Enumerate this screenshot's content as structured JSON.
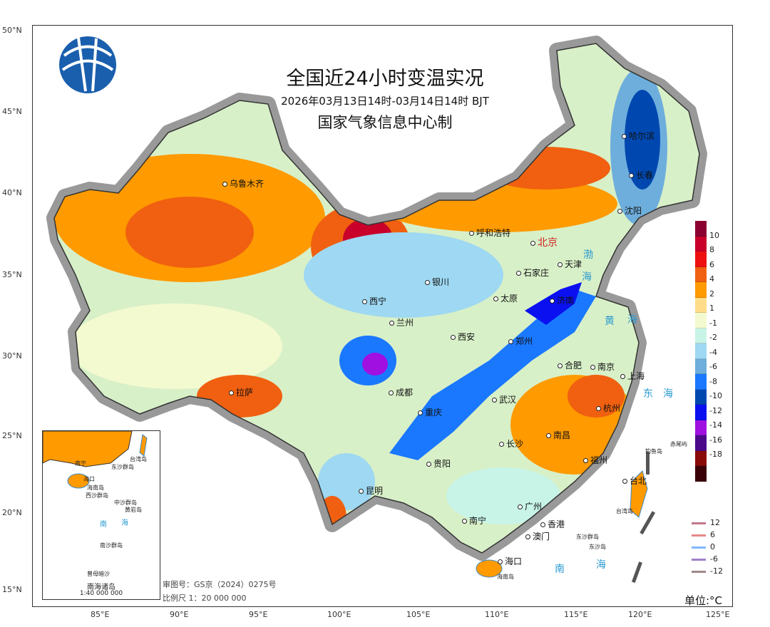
{
  "title": "全国近24小时变温实况",
  "subtitle": "2026年03月13日14时-03月14日14时 BJT",
  "producer": "国家气象信息中心制",
  "logo": "cma-globe-logo",
  "lat_ticks": [
    "50°N",
    "45°N",
    "40°N",
    "35°N",
    "30°N",
    "25°N",
    "20°N",
    "15°N"
  ],
  "lon_ticks": [
    "85°E",
    "90°E",
    "95°E",
    "100°E",
    "105°E",
    "110°E",
    "115°E",
    "120°E",
    "125°E"
  ],
  "cities": [
    "乌鲁木齐",
    "西宁",
    "兰州",
    "银川",
    "呼和浩特",
    "北京",
    "天津",
    "石家庄",
    "太原",
    "济南",
    "郑州",
    "西安",
    "成都",
    "重庆",
    "拉萨",
    "武汉",
    "合肥",
    "南京",
    "上海",
    "杭州",
    "长沙",
    "南昌",
    "贵阳",
    "昆明",
    "南宁",
    "广州",
    "福州",
    "台北",
    "哈尔滨",
    "长春",
    "沈阳",
    "香港",
    "澳门",
    "海口"
  ],
  "islands": [
    "海南岛",
    "台湾岛",
    "钓鱼岛",
    "赤尾屿",
    "东沙群岛",
    "东沙岛"
  ],
  "seas": [
    "渤",
    "海",
    "黄",
    "海",
    "东",
    "海",
    "南",
    "海"
  ],
  "colorbar": {
    "labels": [
      "10",
      "8",
      "6",
      "4",
      "2",
      "1",
      "-1",
      "-2",
      "-4",
      "-6",
      "-8",
      "-10",
      "-12",
      "-14",
      "-16",
      "-18"
    ],
    "colors": [
      "#8b0030",
      "#c8002a",
      "#ee1010",
      "#f06010",
      "#ff9a00",
      "#ffdd88",
      "#f4fad0",
      "#c8f4e8",
      "#9ed8f2",
      "#6eaedc",
      "#1a78ff",
      "#0048b0",
      "#0a10f0",
      "#a010e0",
      "#4a0a8a",
      "#8a0a0a",
      "#3a0008"
    ]
  },
  "isotherm_legend": [
    {
      "label": "12",
      "color": "#c07888"
    },
    {
      "label": "6",
      "color": "#e88888"
    },
    {
      "label": "0",
      "color": "#80b8ff"
    },
    {
      "label": "-6",
      "color": "#a080c8"
    },
    {
      "label": "-12",
      "color": "#a08888"
    }
  ],
  "unit": "单位:°C",
  "approval_no": "审图号：GS京（2024）0275号",
  "scale": "比例尺 1：20 000 000",
  "inset": {
    "title": "南海诸岛",
    "scale": "1:40 000 000",
    "labels": [
      "台湾岛",
      "东沙群岛",
      "西沙群岛",
      "中沙群岛",
      "南沙群岛",
      "海南岛",
      "海口",
      "南宁",
      "黄岩岛",
      "曾母暗沙",
      "南",
      "海"
    ]
  }
}
